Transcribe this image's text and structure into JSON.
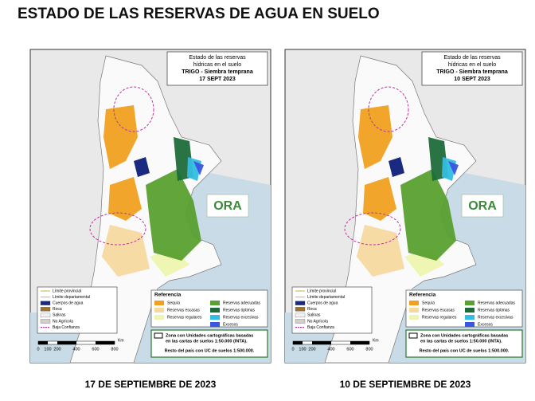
{
  "header": {
    "title": "ESTADO DE LAS RESERVAS DE AGUA EN SUELO"
  },
  "maps": [
    {
      "box": {
        "line1": "Estado de las reservas",
        "line2": "hídricas en el suelo",
        "line3": "TRIGO - Siembra temprana",
        "date": "17 SEPT 2023"
      },
      "caption": "17 DE SEPTIEMBRE DE 2023"
    },
    {
      "box": {
        "line1": "Estado de las reservas",
        "line2": "hídricas en el suelo",
        "line3": "TRIGO - Siembra temprana",
        "date": "10 SEPT 2023"
      },
      "caption": "10 DE SEPTIEMBRE DE 2023"
    }
  ],
  "legend": [
    "Límite provincial",
    "Límite departamental",
    "Cuerpos de agua",
    "Roca",
    "Salinas",
    "No Agrícola",
    "Baja Confianza"
  ],
  "reference": {
    "title": "Referencia",
    "items": [
      "Sequía",
      "Reservas escasas",
      "Reservas regulares",
      "Reservas adecuadas",
      "Reservas óptimas",
      "Reservas excesivas",
      "Excesos"
    ]
  },
  "note": {
    "line1": "Zona con Unidades cartográficas basadas",
    "line2": "en las cartas de suelos 1:50.000 (INTA).",
    "line3": "Resto del país con UC de suelos 1:500.000."
  },
  "scale": {
    "ticks": [
      "0",
      "100",
      "200",
      "400",
      "600",
      "800"
    ],
    "unit": "Km"
  },
  "logo": "ORA"
}
